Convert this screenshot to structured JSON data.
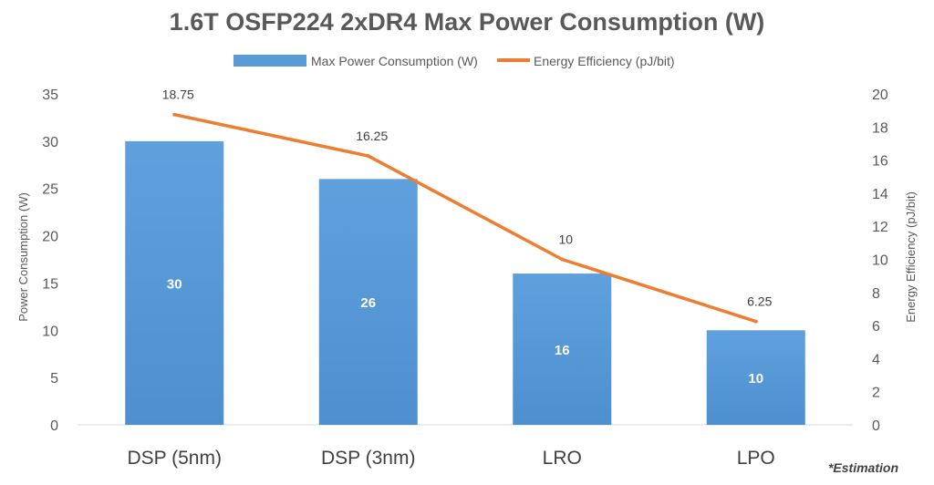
{
  "chart_data": {
    "type": "bar",
    "title": "1.6T OSFP224 2xDR4 Max Power Consumption (W)",
    "categories": [
      "DSP (5nm)",
      "DSP (3nm)",
      "LRO",
      "LPO"
    ],
    "series": [
      {
        "name": "Max Power Consumption (W)",
        "type": "bar",
        "axis": "left",
        "color": "#5B9BD5",
        "values": [
          30,
          26,
          16,
          10
        ],
        "labels": [
          "30",
          "26",
          "16",
          "10"
        ]
      },
      {
        "name": "Energy Efficiency (pJ/bit)",
        "type": "line",
        "axis": "right",
        "color": "#ED7D31",
        "values": [
          18.75,
          16.25,
          10,
          6.25
        ],
        "labels": [
          "18.75",
          "16.25",
          "10",
          "6.25"
        ]
      }
    ],
    "ylabel": "Power Consumption (W)",
    "ylim": [
      0,
      35
    ],
    "yticks": [
      "0",
      "5",
      "10",
      "15",
      "20",
      "25",
      "30",
      "35"
    ],
    "y2label": "Energy Efficiency (pJ/bit)",
    "y2lim": [
      0,
      20
    ],
    "y2ticks": [
      "0",
      "2",
      "4",
      "6",
      "8",
      "10",
      "12",
      "14",
      "16",
      "18",
      "20"
    ],
    "legend_position": "top",
    "grid": false,
    "footnote": "*Estimation"
  }
}
